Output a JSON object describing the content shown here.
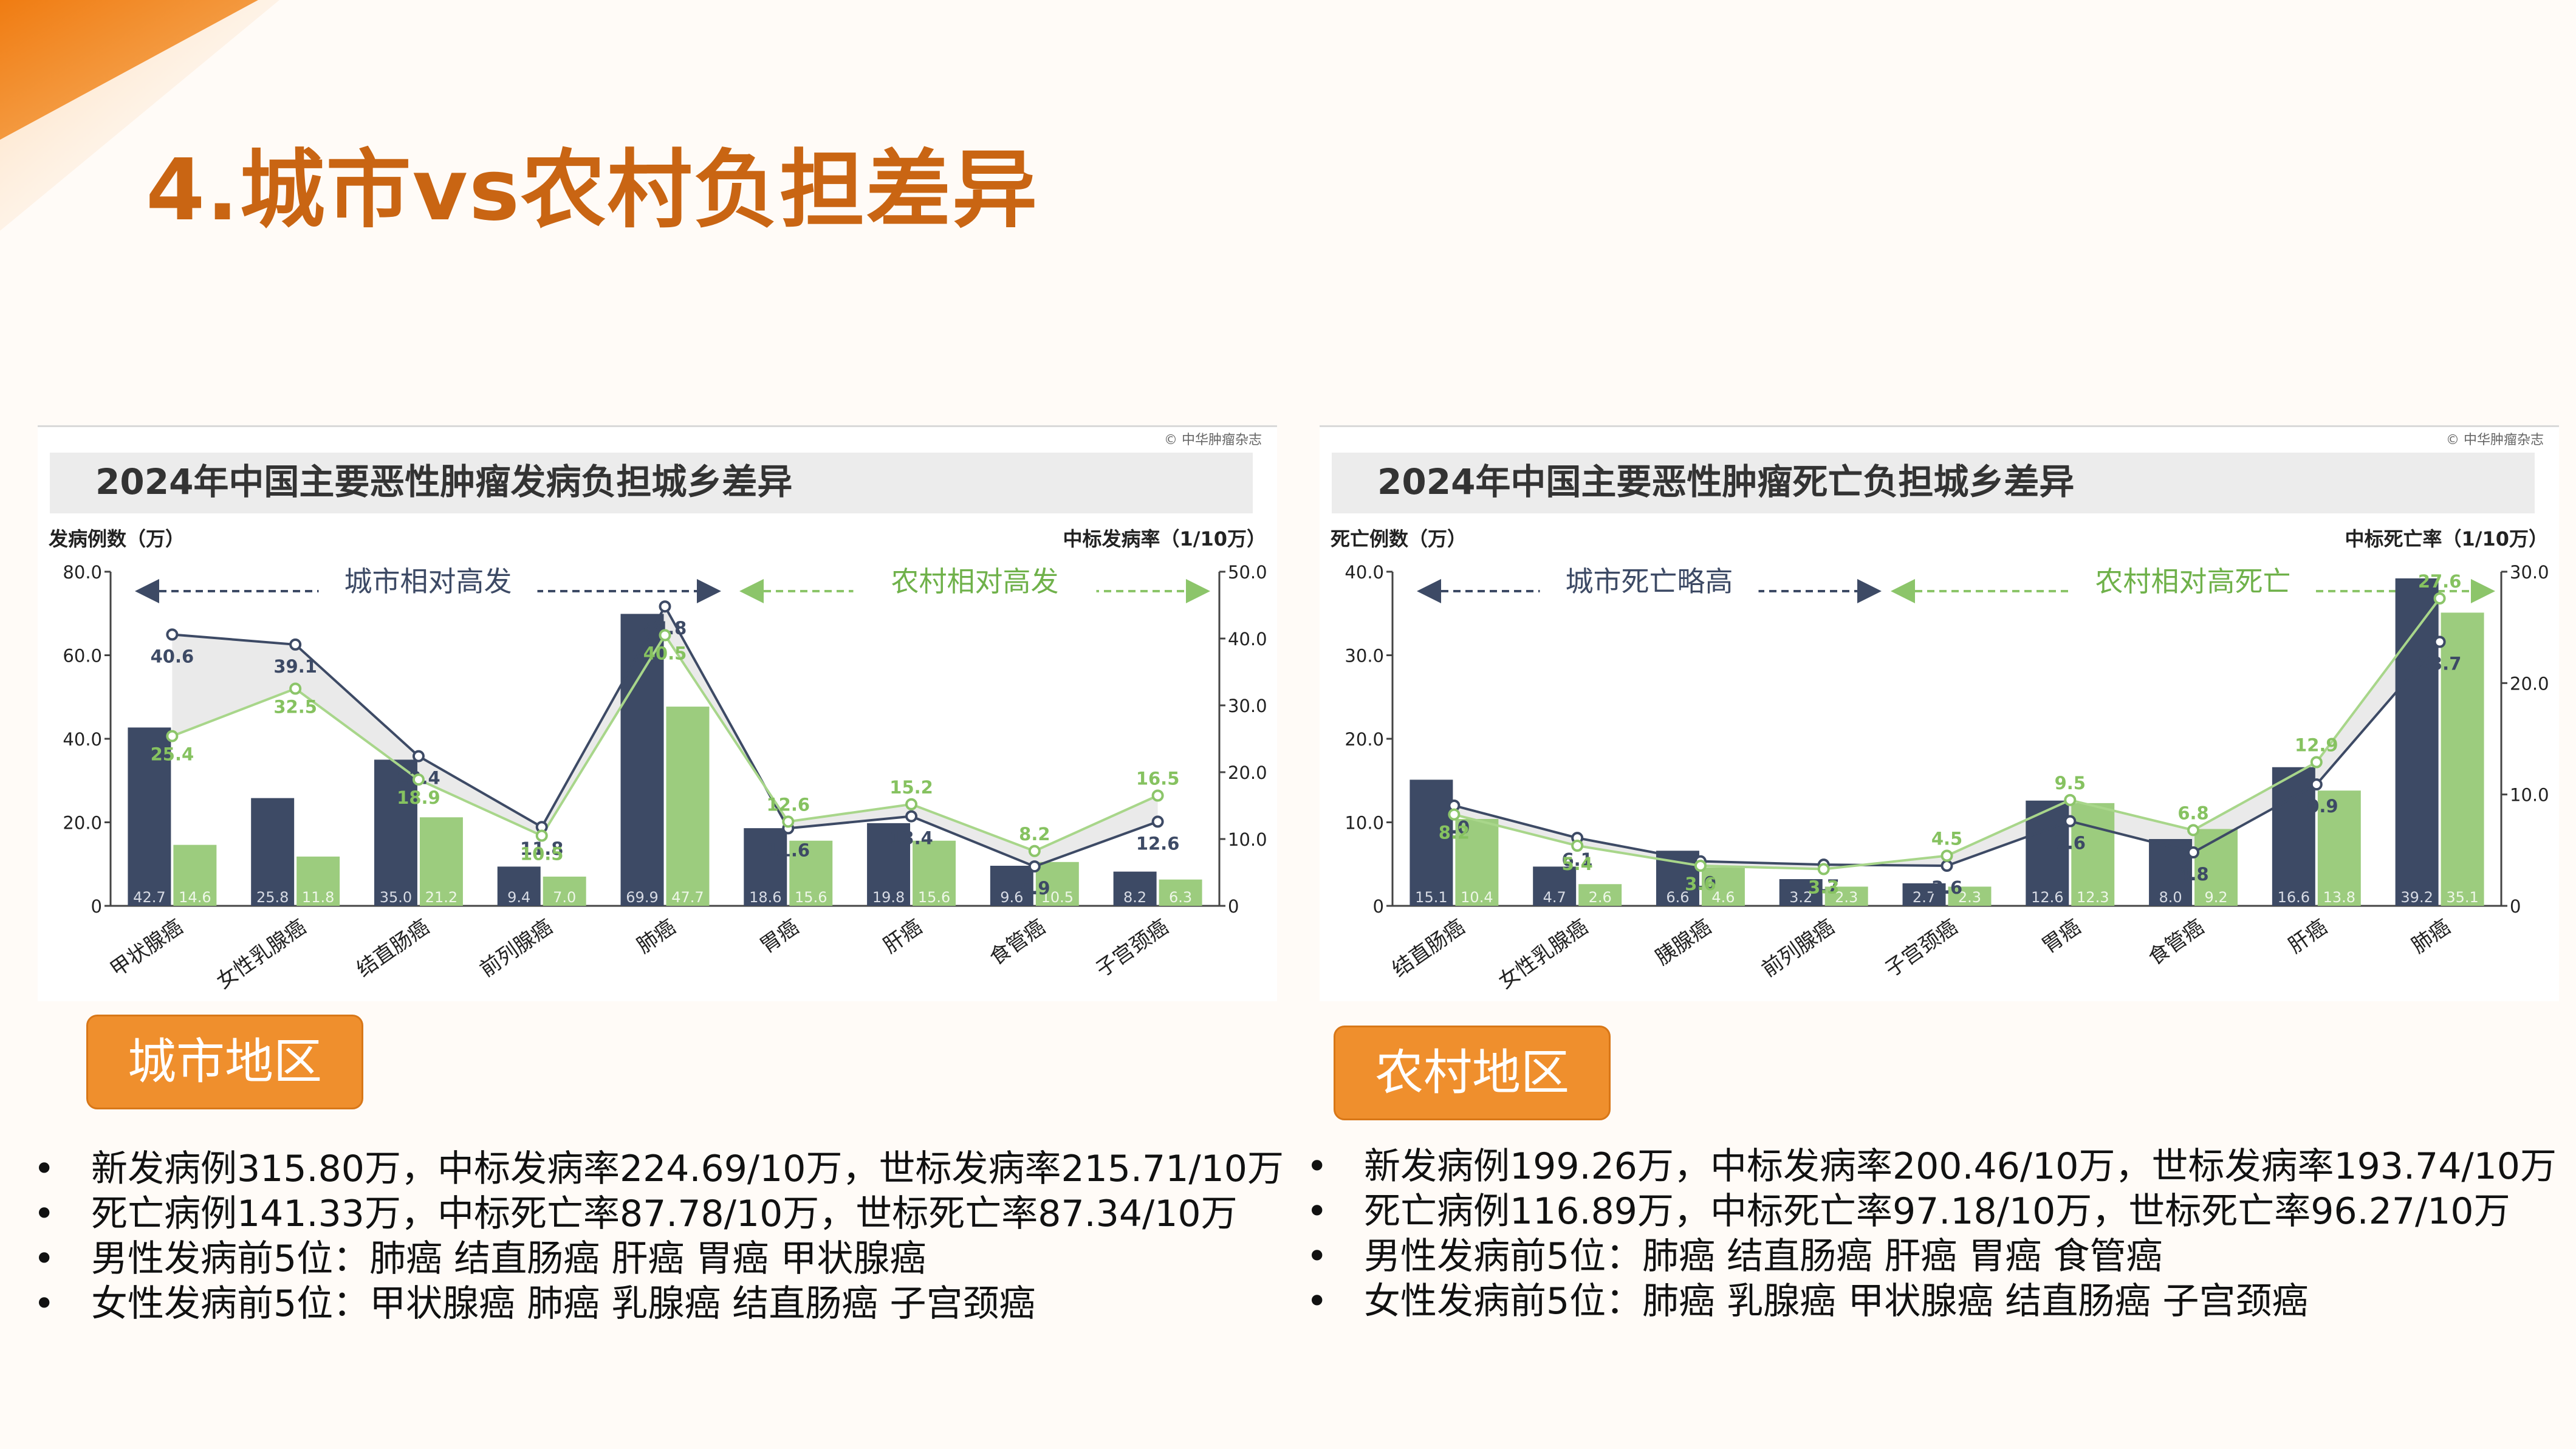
{
  "page": {
    "title": "4.城市vs农村负担差异"
  },
  "theme": {
    "orange": "#ef8f2d",
    "title_color": "#c96513",
    "urban_color": "#3d4a65",
    "rural_color": "#9ccc7e",
    "bg": "#fffbf7"
  },
  "left": {
    "tag": "城市地区",
    "bullets": [
      "新发病例315.80万，中标发病率224.69/10万，世标发病率215.71/10万",
      "死亡病例141.33万，中标死亡率87.78/10万，世标死亡率87.34/10万",
      "男性发病前5位：肺癌  结直肠癌  肝癌  胃癌  甲状腺癌",
      "女性发病前5位：甲状腺癌  肺癌  乳腺癌  结直肠癌  子宫颈癌"
    ]
  },
  "right": {
    "tag": "农村地区",
    "bullets": [
      "新发病例199.26万，中标发病率200.46/10万，世标发病率193.74/10万",
      "死亡病例116.89万，中标死亡率97.18/10万，世标死亡率96.27/10万",
      "男性发病前5位：肺癌  结直肠癌  肝癌  胃癌  食管癌",
      "女性发病前5位：肺癌  乳腺癌  甲状腺癌  结直肠癌  子宫颈癌"
    ]
  },
  "bullet_symbol": "•",
  "chart_data": [
    {
      "type": "bar",
      "title": "2024年中国主要恶性肿瘤发病负担城乡差异",
      "source": "© 中华肿瘤杂志",
      "ylabel": "发病例数（万）",
      "y2label": "中标发病率（1/10万）",
      "ylim": [
        0,
        80
      ],
      "y2lim": [
        0,
        50
      ],
      "yticks": [
        "0",
        "20.0",
        "40.0",
        "60.0",
        "80.0"
      ],
      "y2ticks": [
        "0",
        "10.0",
        "20.0",
        "30.0",
        "40.0",
        "50.0"
      ],
      "grid": false,
      "annotations": {
        "left_text": "城市相对高发",
        "right_text": "农村相对高发"
      },
      "categories": [
        "甲状腺癌",
        "女性乳腺癌",
        "结直肠癌",
        "前列腺癌",
        "肺癌",
        "胃癌",
        "肝癌",
        "食管癌",
        "子宫颈癌"
      ],
      "series": [
        {
          "kind": "bar",
          "values": [
            42.7,
            25.8,
            35.0,
            9.4,
            69.9,
            18.6,
            19.8,
            9.6,
            8.2
          ]
        },
        {
          "kind": "bar",
          "values": [
            14.6,
            11.8,
            21.2,
            7.0,
            47.7,
            15.6,
            15.6,
            10.5,
            6.3
          ]
        },
        {
          "kind": "line",
          "values": [
            40.6,
            39.1,
            22.4,
            11.8,
            44.8,
            11.6,
            13.4,
            5.9,
            12.6
          ]
        },
        {
          "kind": "line",
          "values": [
            25.4,
            32.5,
            18.9,
            10.5,
            40.5,
            12.6,
            15.2,
            8.2,
            16.5
          ]
        }
      ]
    },
    {
      "type": "bar",
      "title": "2024年中国主要恶性肿瘤死亡负担城乡差异",
      "source": "© 中华肿瘤杂志",
      "ylabel": "死亡例数（万）",
      "y2label": "中标死亡率（1/10万）",
      "ylim": [
        0,
        40
      ],
      "y2lim": [
        0,
        30
      ],
      "yticks": [
        "0",
        "10.0",
        "20.0",
        "30.0",
        "40.0"
      ],
      "y2ticks": [
        "0",
        "10.0",
        "20.0",
        "30.0"
      ],
      "grid": false,
      "annotations": {
        "left_text": "城市死亡略高",
        "right_text": "农村相对高死亡"
      },
      "categories": [
        "结直肠癌",
        "女性乳腺癌",
        "胰腺癌",
        "前列腺癌",
        "子宫颈癌",
        "胃癌",
        "食管癌",
        "肝癌",
        "肺癌"
      ],
      "series": [
        {
          "kind": "bar",
          "values": [
            15.1,
            4.7,
            6.6,
            3.2,
            2.7,
            12.6,
            8.0,
            16.6,
            39.2
          ]
        },
        {
          "kind": "bar",
          "values": [
            10.4,
            2.6,
            4.6,
            2.3,
            2.3,
            12.3,
            9.2,
            13.8,
            35.1
          ]
        },
        {
          "kind": "line",
          "values": [
            9.0,
            6.1,
            4.0,
            3.7,
            3.6,
            7.6,
            4.8,
            10.9,
            23.7
          ]
        },
        {
          "kind": "line",
          "values": [
            8.2,
            5.4,
            3.6,
            3.3,
            4.5,
            9.5,
            6.8,
            12.9,
            27.6
          ]
        }
      ]
    }
  ]
}
